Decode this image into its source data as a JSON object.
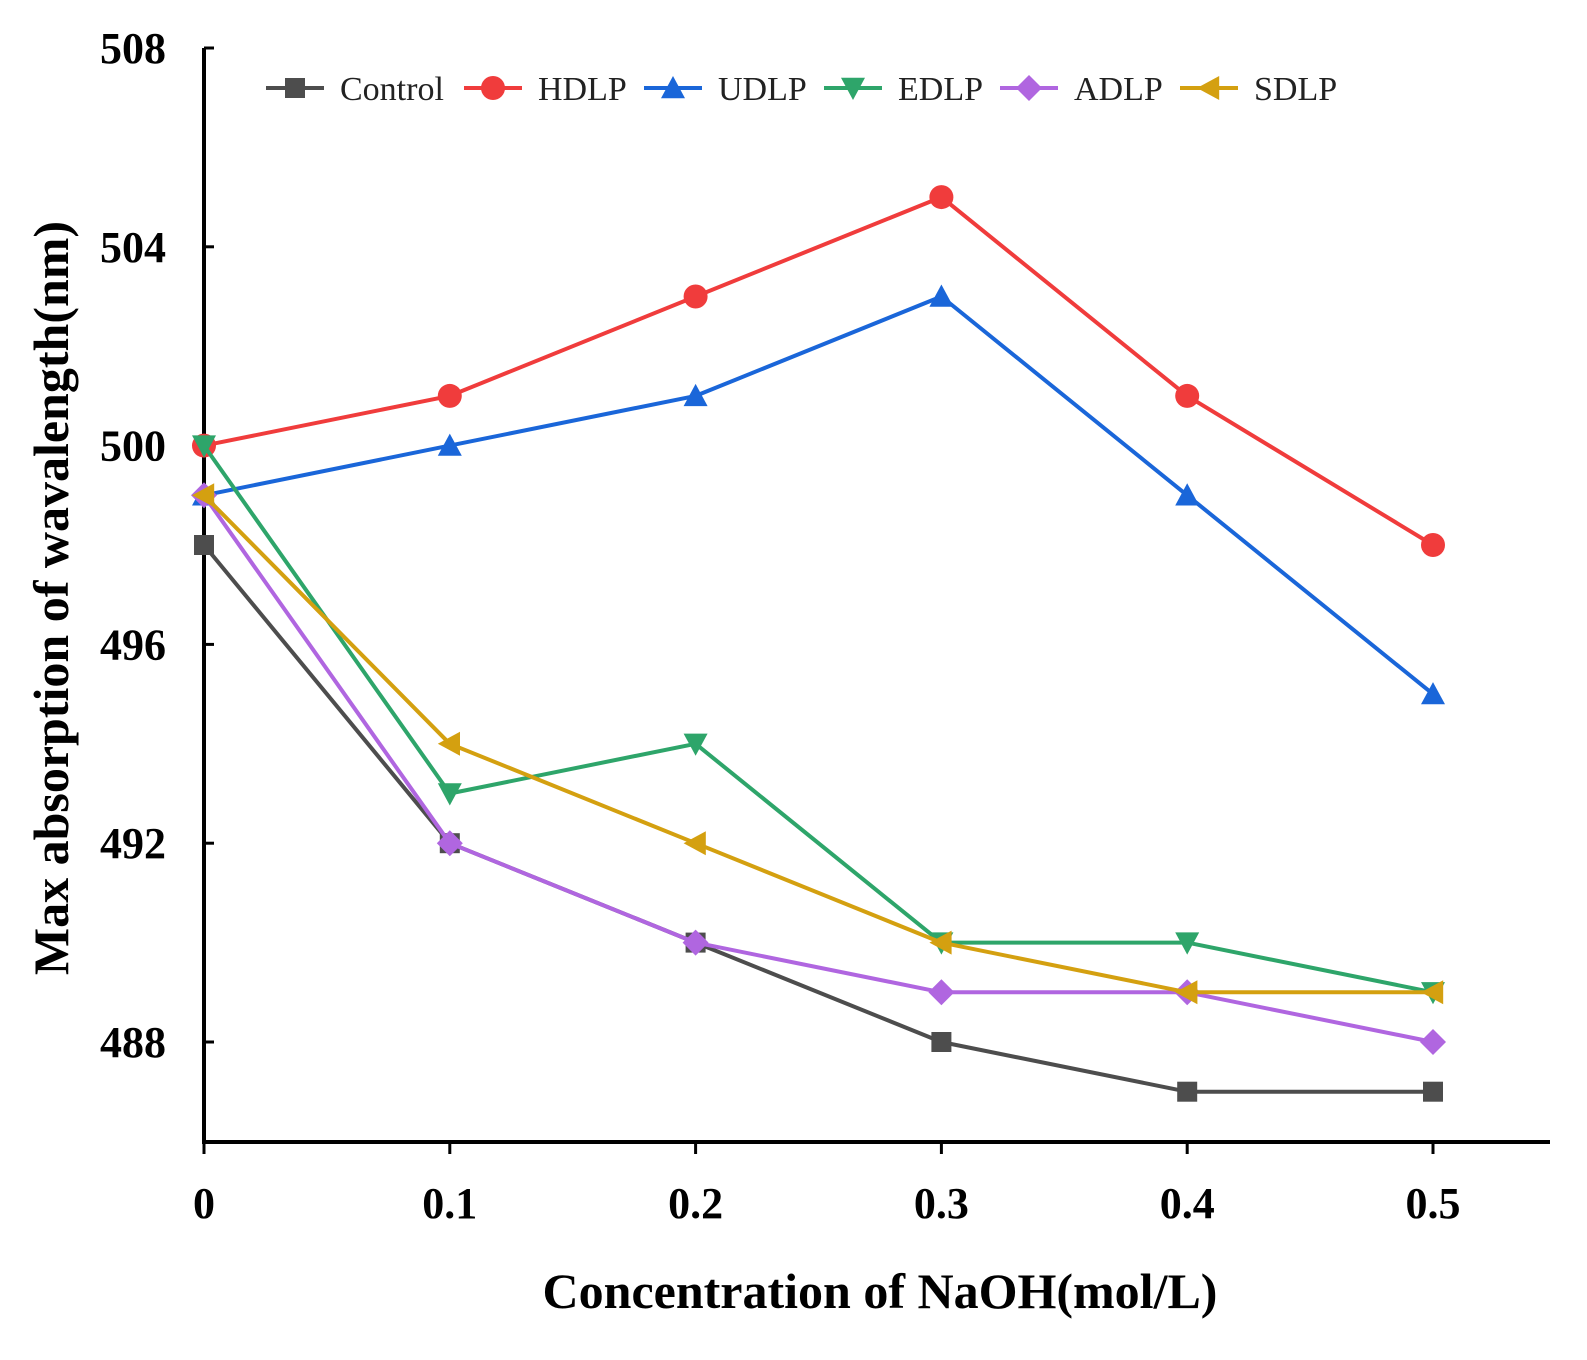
{
  "chart_data": {
    "type": "line",
    "title": "",
    "xlabel": "Concentration of NaOH(mol/L)",
    "ylabel": "Max absorption of wavalength(nm)",
    "x": [
      0,
      0.1,
      0.2,
      0.3,
      0.4,
      0.5
    ],
    "x_tick_labels": [
      "0",
      "0.1",
      "0.2",
      "0.3",
      "0.4",
      "0.5"
    ],
    "xlim": [
      0,
      0.55
    ],
    "ylim": [
      486,
      508
    ],
    "y_ticks": [
      488,
      492,
      496,
      500,
      504,
      508
    ],
    "y_tick_labels": [
      "488",
      "492",
      "496",
      "500",
      "504",
      "508"
    ],
    "grid": false,
    "legend_position": "top",
    "series": [
      {
        "name": "Control",
        "marker": "square",
        "color": "#4d4d4d",
        "values": [
          498,
          492,
          490,
          488,
          487,
          487
        ]
      },
      {
        "name": "HDLP",
        "marker": "circle",
        "color": "#f03c3c",
        "values": [
          500,
          501,
          503,
          505,
          501,
          498
        ]
      },
      {
        "name": "UDLP",
        "marker": "triangle-up",
        "color": "#1a66d9",
        "values": [
          499,
          500,
          501,
          503,
          499,
          495
        ]
      },
      {
        "name": "EDLP",
        "marker": "triangle-down",
        "color": "#2ea56a",
        "values": [
          500,
          493,
          494,
          490,
          490,
          489
        ]
      },
      {
        "name": "ADLP",
        "marker": "diamond",
        "color": "#b066e0",
        "values": [
          499,
          492,
          490,
          489,
          489,
          488
        ]
      },
      {
        "name": "SDLP",
        "marker": "triangle-left",
        "color": "#d4a010",
        "values": [
          499,
          494,
          492,
          490,
          489,
          489
        ]
      }
    ]
  }
}
